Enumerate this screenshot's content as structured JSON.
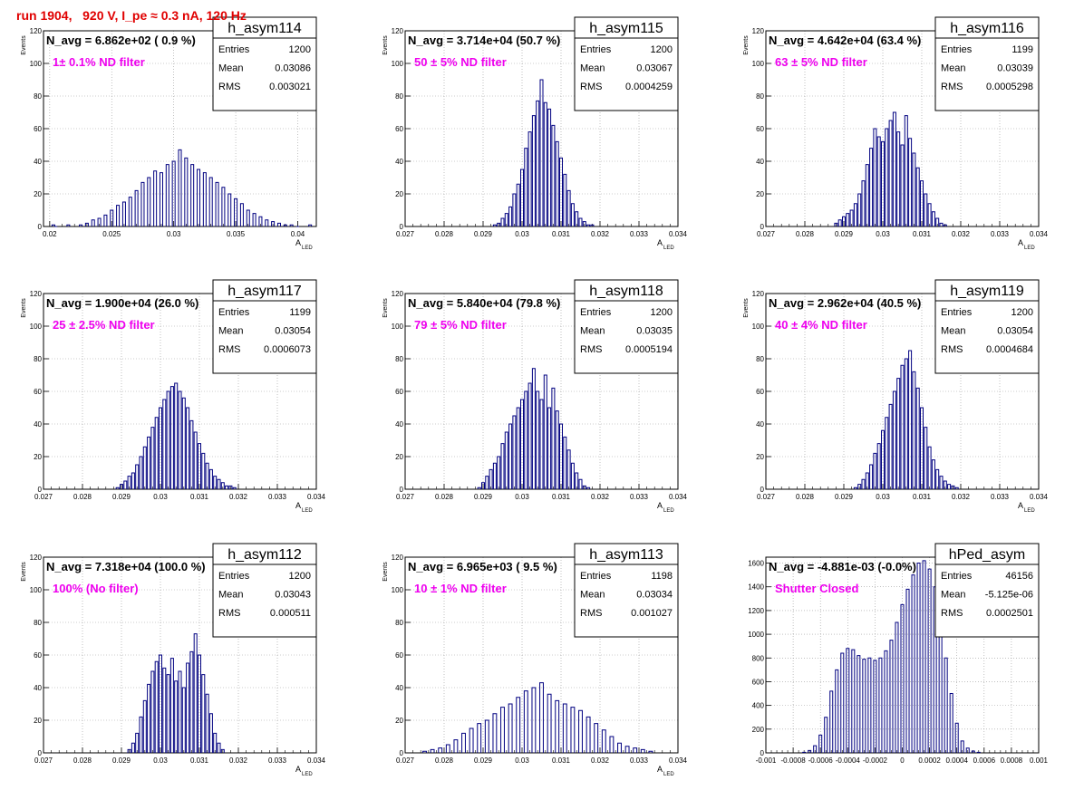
{
  "page": {
    "run_title": "run 1904,   920 V, I_pe ≈ 0.3 nA, 120 Hz"
  },
  "colors": {
    "histogram": "#000080",
    "filter_text": "#ee00ee",
    "title_text": "#e00000"
  },
  "chart_data": [
    {
      "type": "histogram",
      "name": "h_asym114",
      "header": "N_avg = 6.862e+02 ( 0.9 %)",
      "filter": "1± 0.1% ND filter",
      "stats": {
        "Entries": "1200",
        "Mean": "0.03086",
        "RMS": "0.003021"
      },
      "xlabel": "A",
      "xlabel_sub": "LED",
      "ylabel": "Events",
      "xlim": [
        0.0195,
        0.0415
      ],
      "ylim": [
        0,
        120
      ],
      "xticks": [
        0.02,
        0.025,
        0.03,
        0.035,
        0.04
      ],
      "xtick_labels": [
        "0.02",
        "0.025",
        "0.03",
        "0.035",
        "0.04"
      ],
      "yticks": [
        0,
        20,
        40,
        60,
        80,
        100,
        120
      ],
      "ytick_labels": [
        "0",
        "20",
        "40",
        "60",
        "80",
        "100",
        "120"
      ],
      "bin_width": 0.00022,
      "bins": [
        0.0203,
        0.0205,
        0.0215,
        0.0225,
        0.023,
        0.0235,
        0.024,
        0.0245,
        0.025,
        0.0255,
        0.026,
        0.0265,
        0.027,
        0.0275,
        0.028,
        0.0285,
        0.029,
        0.0295,
        0.03,
        0.0305,
        0.031,
        0.0315,
        0.032,
        0.0325,
        0.033,
        0.0335,
        0.034,
        0.0345,
        0.035,
        0.0355,
        0.036,
        0.0365,
        0.037,
        0.0375,
        0.038,
        0.0385,
        0.039,
        0.0395,
        0.04,
        0.041
      ],
      "values": [
        1,
        0,
        1,
        1,
        2,
        4,
        5,
        7,
        10,
        13,
        15,
        18,
        22,
        27,
        30,
        34,
        33,
        38,
        40,
        47,
        42,
        38,
        35,
        33,
        30,
        27,
        24,
        20,
        17,
        14,
        10,
        8,
        6,
        4,
        3,
        2,
        1,
        1,
        0,
        1
      ]
    },
    {
      "type": "histogram",
      "name": "h_asym115",
      "header": "N_avg = 3.714e+04 (50.7 %)",
      "filter": "50 ± 5% ND filter",
      "stats": {
        "Entries": "1200",
        "Mean": "0.03067",
        "RMS": "0.0004259"
      },
      "xlabel": "A",
      "xlabel_sub": "LED",
      "ylabel": "Events",
      "xlim": [
        0.027,
        0.034
      ],
      "ylim": [
        0,
        120
      ],
      "xticks": [
        0.027,
        0.028,
        0.029,
        0.03,
        0.031,
        0.032,
        0.033,
        0.034
      ],
      "xtick_labels": [
        "0.027",
        "0.028",
        "0.029",
        "0.03",
        "0.031",
        "0.032",
        "0.033",
        "0.034"
      ],
      "yticks": [
        0,
        20,
        40,
        60,
        80,
        100,
        120
      ],
      "ytick_labels": [
        "0",
        "20",
        "40",
        "60",
        "80",
        "100",
        "120"
      ],
      "bin_width": 7e-05,
      "bins": [
        0.0293,
        0.0294,
        0.0295,
        0.0296,
        0.0297,
        0.0298,
        0.0299,
        0.03,
        0.0301,
        0.0302,
        0.0303,
        0.0304,
        0.0305,
        0.0306,
        0.0307,
        0.0308,
        0.0309,
        0.031,
        0.0311,
        0.0312,
        0.0313,
        0.0314,
        0.0315,
        0.0316,
        0.0317,
        0.0318
      ],
      "values": [
        1,
        2,
        5,
        8,
        12,
        20,
        26,
        35,
        48,
        58,
        68,
        77,
        90,
        76,
        72,
        62,
        52,
        42,
        32,
        22,
        14,
        9,
        5,
        3,
        1,
        1
      ]
    },
    {
      "type": "histogram",
      "name": "h_asym116",
      "header": "N_avg = 4.642e+04 (63.4 %)",
      "filter": "63 ± 5% ND filter",
      "stats": {
        "Entries": "1199",
        "Mean": "0.03039",
        "RMS": "0.0005298"
      },
      "xlabel": "A",
      "xlabel_sub": "LED",
      "ylabel": "Events",
      "xlim": [
        0.027,
        0.034
      ],
      "ylim": [
        0,
        120
      ],
      "xticks": [
        0.027,
        0.028,
        0.029,
        0.03,
        0.031,
        0.032,
        0.033,
        0.034
      ],
      "xtick_labels": [
        "0.027",
        "0.028",
        "0.029",
        "0.03",
        "0.031",
        "0.032",
        "0.033",
        "0.034"
      ],
      "yticks": [
        0,
        20,
        40,
        60,
        80,
        100,
        120
      ],
      "ytick_labels": [
        "0",
        "20",
        "40",
        "60",
        "80",
        "100",
        "120"
      ],
      "bin_width": 7e-05,
      "bins": [
        0.0288,
        0.0289,
        0.029,
        0.0291,
        0.0292,
        0.0293,
        0.0294,
        0.0295,
        0.0296,
        0.0297,
        0.0298,
        0.0299,
        0.03,
        0.0301,
        0.0302,
        0.0303,
        0.0304,
        0.0305,
        0.0306,
        0.0307,
        0.0308,
        0.0309,
        0.031,
        0.0311,
        0.0312,
        0.0313,
        0.0314,
        0.0315,
        0.0316
      ],
      "values": [
        2,
        4,
        6,
        8,
        10,
        14,
        20,
        28,
        38,
        48,
        60,
        55,
        52,
        60,
        65,
        70,
        58,
        50,
        68,
        54,
        45,
        36,
        28,
        20,
        14,
        9,
        5,
        2,
        1
      ]
    },
    {
      "type": "histogram",
      "name": "h_asym117",
      "header": "N_avg = 1.900e+04 (26.0 %)",
      "filter": "25 ± 2.5% ND filter",
      "stats": {
        "Entries": "1199",
        "Mean": "0.03054",
        "RMS": "0.0006073"
      },
      "xlabel": "A",
      "xlabel_sub": "LED",
      "ylabel": "Events",
      "xlim": [
        0.027,
        0.034
      ],
      "ylim": [
        0,
        120
      ],
      "xticks": [
        0.027,
        0.028,
        0.029,
        0.03,
        0.031,
        0.032,
        0.033,
        0.034
      ],
      "xtick_labels": [
        "0.027",
        "0.028",
        "0.029",
        "0.03",
        "0.031",
        "0.032",
        "0.033",
        "0.034"
      ],
      "yticks": [
        0,
        20,
        40,
        60,
        80,
        100,
        120
      ],
      "ytick_labels": [
        "0",
        "20",
        "40",
        "60",
        "80",
        "100",
        "120"
      ],
      "bin_width": 7e-05,
      "bins": [
        0.0289,
        0.029,
        0.0291,
        0.0292,
        0.0293,
        0.0294,
        0.0295,
        0.0296,
        0.0297,
        0.0298,
        0.0299,
        0.03,
        0.0301,
        0.0302,
        0.0303,
        0.0304,
        0.0305,
        0.0306,
        0.0307,
        0.0308,
        0.0309,
        0.031,
        0.0311,
        0.0312,
        0.0313,
        0.0314,
        0.0315,
        0.0316,
        0.0317,
        0.0318,
        0.0319
      ],
      "values": [
        1,
        3,
        5,
        8,
        10,
        15,
        20,
        26,
        32,
        38,
        44,
        50,
        55,
        60,
        63,
        65,
        60,
        56,
        50,
        42,
        35,
        28,
        22,
        16,
        12,
        8,
        6,
        4,
        2,
        2,
        1
      ]
    },
    {
      "type": "histogram",
      "name": "h_asym118",
      "header": "N_avg = 5.840e+04 (79.8 %)",
      "filter": "79 ± 5% ND filter",
      "stats": {
        "Entries": "1200",
        "Mean": "0.03035",
        "RMS": "0.0005194"
      },
      "xlabel": "A",
      "xlabel_sub": "LED",
      "ylabel": "Events",
      "xlim": [
        0.027,
        0.034
      ],
      "ylim": [
        0,
        120
      ],
      "xticks": [
        0.027,
        0.028,
        0.029,
        0.03,
        0.031,
        0.032,
        0.033,
        0.034
      ],
      "xtick_labels": [
        "0.027",
        "0.028",
        "0.029",
        "0.03",
        "0.031",
        "0.032",
        "0.033",
        "0.034"
      ],
      "yticks": [
        0,
        20,
        40,
        60,
        80,
        100,
        120
      ],
      "ytick_labels": [
        "0",
        "20",
        "40",
        "60",
        "80",
        "100",
        "120"
      ],
      "bin_width": 7e-05,
      "bins": [
        0.0289,
        0.029,
        0.0291,
        0.0292,
        0.0293,
        0.0294,
        0.0295,
        0.0296,
        0.0297,
        0.0298,
        0.0299,
        0.03,
        0.0301,
        0.0302,
        0.0303,
        0.0304,
        0.0305,
        0.0306,
        0.0307,
        0.0308,
        0.0309,
        0.031,
        0.0311,
        0.0312,
        0.0313,
        0.0314,
        0.0315,
        0.0316,
        0.0317
      ],
      "values": [
        1,
        4,
        8,
        12,
        16,
        20,
        28,
        35,
        40,
        45,
        50,
        55,
        60,
        65,
        74,
        60,
        55,
        70,
        50,
        62,
        48,
        40,
        32,
        24,
        16,
        10,
        6,
        2,
        1
      ]
    },
    {
      "type": "histogram",
      "name": "h_asym119",
      "header": "N_avg = 2.962e+04 (40.5 %)",
      "filter": "40 ± 4% ND filter",
      "stats": {
        "Entries": "1200",
        "Mean": "0.03054",
        "RMS": "0.0004684"
      },
      "xlabel": "A",
      "xlabel_sub": "LED",
      "ylabel": "Events",
      "xlim": [
        0.027,
        0.034
      ],
      "ylim": [
        0,
        120
      ],
      "xticks": [
        0.027,
        0.028,
        0.029,
        0.03,
        0.031,
        0.032,
        0.033,
        0.034
      ],
      "xtick_labels": [
        "0.027",
        "0.028",
        "0.029",
        "0.03",
        "0.031",
        "0.032",
        "0.033",
        "0.034"
      ],
      "yticks": [
        0,
        20,
        40,
        60,
        80,
        100,
        120
      ],
      "ytick_labels": [
        "0",
        "20",
        "40",
        "60",
        "80",
        "100",
        "120"
      ],
      "bin_width": 7e-05,
      "bins": [
        0.0293,
        0.0294,
        0.0295,
        0.0296,
        0.0297,
        0.0298,
        0.0299,
        0.03,
        0.0301,
        0.0302,
        0.0303,
        0.0304,
        0.0305,
        0.0306,
        0.0307,
        0.0308,
        0.0309,
        0.031,
        0.0311,
        0.0312,
        0.0313,
        0.0314,
        0.0315,
        0.0316,
        0.0317,
        0.0318,
        0.0319
      ],
      "values": [
        1,
        3,
        6,
        10,
        15,
        22,
        28,
        36,
        44,
        52,
        60,
        68,
        76,
        80,
        85,
        72,
        62,
        50,
        38,
        26,
        18,
        12,
        8,
        5,
        3,
        2,
        1
      ]
    },
    {
      "type": "histogram",
      "name": "h_asym112",
      "header": "N_avg = 7.318e+04 (100.0 %)",
      "filter": "100% (No filter)",
      "stats": {
        "Entries": "1200",
        "Mean": "0.03043",
        "RMS": "0.000511"
      },
      "xlabel": "A",
      "xlabel_sub": "LED",
      "ylabel": "Events",
      "xlim": [
        0.027,
        0.034
      ],
      "ylim": [
        0,
        120
      ],
      "xticks": [
        0.027,
        0.028,
        0.029,
        0.03,
        0.031,
        0.032,
        0.033,
        0.034
      ],
      "xtick_labels": [
        "0.027",
        "0.028",
        "0.029",
        "0.03",
        "0.031",
        "0.032",
        "0.033",
        "0.034"
      ],
      "yticks": [
        0,
        20,
        40,
        60,
        80,
        100,
        120
      ],
      "ytick_labels": [
        "0",
        "20",
        "40",
        "60",
        "80",
        "100",
        "120"
      ],
      "bin_width": 7e-05,
      "bins": [
        0.0292,
        0.0293,
        0.0294,
        0.0295,
        0.0296,
        0.0297,
        0.0298,
        0.0299,
        0.03,
        0.0301,
        0.0302,
        0.0303,
        0.0304,
        0.0305,
        0.0306,
        0.0307,
        0.0308,
        0.0309,
        0.031,
        0.0311,
        0.0312,
        0.0313,
        0.0314,
        0.0315,
        0.0316
      ],
      "values": [
        2,
        6,
        12,
        22,
        32,
        42,
        50,
        56,
        60,
        52,
        48,
        58,
        44,
        50,
        40,
        55,
        62,
        73,
        60,
        48,
        36,
        24,
        12,
        6,
        2
      ]
    },
    {
      "type": "histogram",
      "name": "h_asym113",
      "header": "N_avg = 6.965e+03 ( 9.5 %)",
      "filter": "10 ± 1% ND filter",
      "stats": {
        "Entries": "1198",
        "Mean": "0.03034",
        "RMS": "0.001027"
      },
      "xlabel": "A",
      "xlabel_sub": "LED",
      "ylabel": "Events",
      "xlim": [
        0.027,
        0.034
      ],
      "ylim": [
        0,
        120
      ],
      "xticks": [
        0.027,
        0.028,
        0.029,
        0.03,
        0.031,
        0.032,
        0.033,
        0.034
      ],
      "xtick_labels": [
        "0.027",
        "0.028",
        "0.029",
        "0.03",
        "0.031",
        "0.032",
        "0.033",
        "0.034"
      ],
      "yticks": [
        0,
        20,
        40,
        60,
        80,
        100,
        120
      ],
      "ytick_labels": [
        "0",
        "20",
        "40",
        "60",
        "80",
        "100",
        "120"
      ],
      "bin_width": 9e-05,
      "bins": [
        0.0275,
        0.0277,
        0.0279,
        0.0281,
        0.0283,
        0.0285,
        0.0287,
        0.0289,
        0.0291,
        0.0293,
        0.0295,
        0.0297,
        0.0299,
        0.0301,
        0.0303,
        0.0305,
        0.0307,
        0.0309,
        0.0311,
        0.0313,
        0.0315,
        0.0317,
        0.0319,
        0.0321,
        0.0323,
        0.0325,
        0.0327,
        0.0329,
        0.0331,
        0.0333
      ],
      "values": [
        1,
        2,
        3,
        5,
        8,
        12,
        15,
        18,
        20,
        24,
        28,
        30,
        34,
        38,
        40,
        43,
        36,
        32,
        30,
        28,
        26,
        22,
        18,
        14,
        10,
        6,
        4,
        3,
        2,
        1
      ]
    },
    {
      "type": "histogram",
      "name": "hPed_asym",
      "header": "N_avg = -4.881e-03 (-0.0%)",
      "filter": "Shutter Closed",
      "stats": {
        "Entries": "46156",
        "Mean": "-5.125e-06",
        "RMS": "0.0002501"
      },
      "xlabel": "",
      "xlabel_sub": "",
      "ylabel": "",
      "xlim": [
        -0.001,
        0.001
      ],
      "ylim": [
        0,
        1650
      ],
      "xticks": [
        -0.001,
        -0.0008,
        -0.0006,
        -0.0004,
        -0.0002,
        0,
        0.0002,
        0.0004,
        0.0006,
        0.0008,
        0.001
      ],
      "xtick_labels": [
        "-0.001",
        "-0.0008",
        "-0.0006",
        "-0.0004",
        "-0.0002",
        "0",
        "0.0002",
        "0.0004",
        "0.0006",
        "0.0008",
        "0.001"
      ],
      "yticks": [
        0,
        200,
        400,
        600,
        800,
        1000,
        1200,
        1400,
        1600
      ],
      "ytick_labels": [
        "0",
        "200",
        "400",
        "600",
        "800",
        "1000",
        "1200",
        "1400",
        "1600"
      ],
      "bin_width": 2e-05,
      "bins": [
        -0.00072,
        -0.00068,
        -0.00064,
        -0.0006,
        -0.00056,
        -0.00052,
        -0.00048,
        -0.00044,
        -0.0004,
        -0.00036,
        -0.00032,
        -0.00028,
        -0.00024,
        -0.0002,
        -0.00016,
        -0.00012,
        -8e-05,
        -4e-05,
        0,
        4e-05,
        8e-05,
        0.00012,
        0.00016,
        0.0002,
        0.00024,
        0.00028,
        0.00032,
        0.00036,
        0.0004,
        0.00044,
        0.00048,
        0.00052,
        0.00056
      ],
      "values": [
        5,
        20,
        60,
        150,
        300,
        520,
        700,
        840,
        880,
        870,
        820,
        790,
        800,
        780,
        800,
        860,
        950,
        1100,
        1250,
        1380,
        1500,
        1600,
        1620,
        1550,
        1400,
        1100,
        800,
        500,
        250,
        100,
        40,
        15,
        5
      ]
    }
  ]
}
